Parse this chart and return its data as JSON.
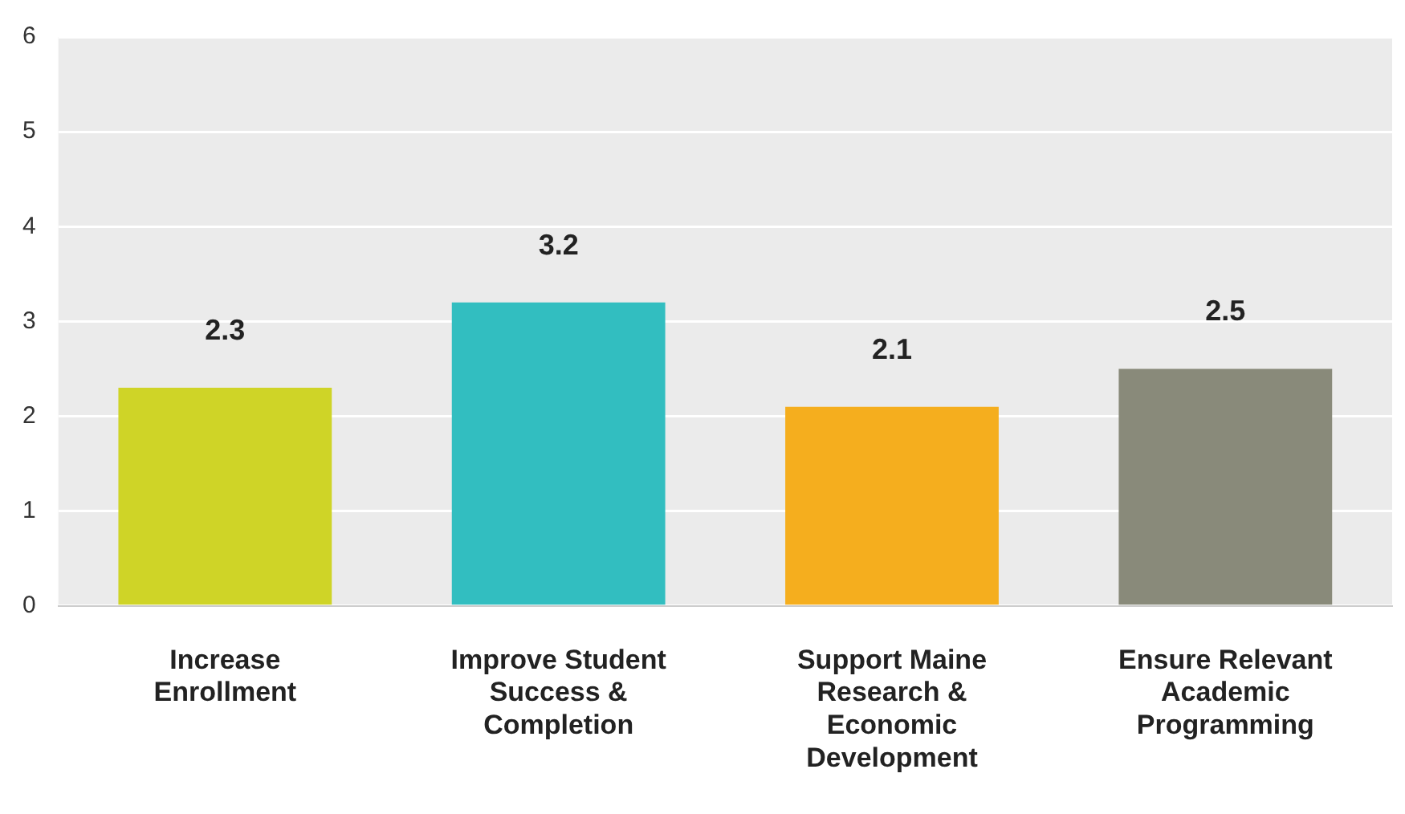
{
  "chart_data": {
    "type": "bar",
    "categories": [
      "Increase Enrollment",
      "Improve Student Success & Completion",
      "Support Maine Research & Economic Development",
      "Ensure Relevant Academic Programming"
    ],
    "values": [
      2.3,
      3.2,
      2.1,
      2.5
    ],
    "colors": [
      "#cfd427",
      "#32bec0",
      "#f5ae1e",
      "#898a7a"
    ],
    "ylim": [
      0,
      6
    ],
    "yticks": [
      0,
      1,
      2,
      3,
      4,
      5,
      6
    ],
    "grid": "y",
    "data_labels": true,
    "legend": false
  }
}
